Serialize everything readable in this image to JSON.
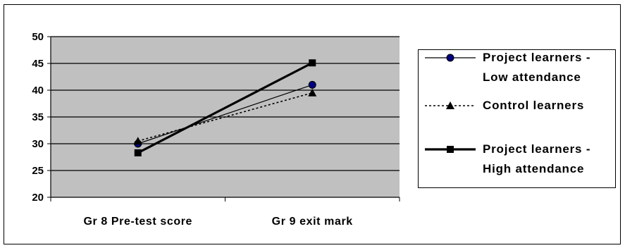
{
  "chart_data": {
    "type": "line",
    "categories": [
      "Gr 8 Pre-test score",
      "Gr 9 exit mark"
    ],
    "ylim": [
      20,
      50
    ],
    "yticks": [
      20,
      25,
      30,
      35,
      40,
      45,
      50
    ],
    "grid": true,
    "legend_position": "right",
    "plot_background": "#c0c0c0",
    "series": [
      {
        "name": "Project learners - Low attendance",
        "legend_lines": [
          "Project learners -",
          "Low attendance"
        ],
        "values": [
          30,
          41
        ],
        "marker": "circle",
        "line_style": "solid-thin",
        "marker_color": "#000080"
      },
      {
        "name": "Control learners",
        "legend_lines": [
          "Control learners"
        ],
        "values": [
          30.5,
          39.5
        ],
        "marker": "triangle",
        "line_style": "dotted",
        "marker_color": "#000000"
      },
      {
        "name": "Project learners - High attendance",
        "legend_lines": [
          "Project learners -",
          "High attendance"
        ],
        "values": [
          28.3,
          45.1
        ],
        "marker": "square",
        "line_style": "solid-thick",
        "marker_color": "#000000"
      }
    ]
  }
}
